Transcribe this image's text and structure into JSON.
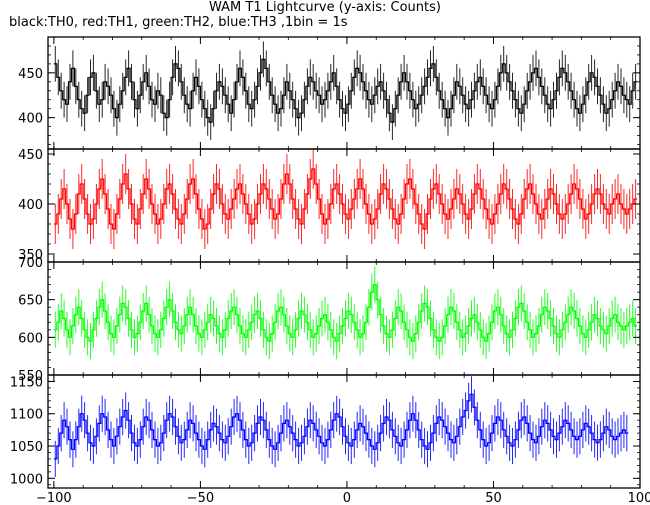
{
  "title": "WAM T1 Lightcurve (y-axis: Counts)",
  "subtitle": "black:TH0, red:TH1, green:TH2, blue:TH3 ,1bin = 1s",
  "chart_data": {
    "type": "line",
    "step": true,
    "x_range": [
      -102,
      100
    ],
    "x_ticks": [
      -100,
      -50,
      0,
      50,
      100
    ],
    "x_tick_labels": [
      "−100",
      "−50",
      "0",
      "50",
      "100"
    ],
    "bin_width": 1,
    "x_start": -100,
    "x_end": 98,
    "panels": [
      {
        "name": "TH0",
        "color": "#000000",
        "ylim": [
          365,
          490
        ],
        "y_ticks": [
          400,
          450
        ],
        "y_tick_labels": [
          "400",
          "450"
        ],
        "mean": 425,
        "amplitude": 15,
        "error": 20,
        "values": [
          460,
          445,
          430,
          420,
          415,
          440,
          455,
          435,
          420,
          410,
          405,
          425,
          445,
          450,
          430,
          415,
          420,
          440,
          435,
          425,
          410,
          400,
          415,
          430,
          445,
          455,
          440,
          420,
          410,
          425,
          440,
          450,
          435,
          420,
          415,
          430,
          425,
          405,
          400,
          420,
          445,
          460,
          455,
          440,
          425,
          415,
          410,
          430,
          445,
          435,
          420,
          410,
          400,
          395,
          410,
          430,
          440,
          435,
          425,
          415,
          405,
          420,
          440,
          455,
          445,
          430,
          415,
          410,
          420,
          435,
          450,
          465,
          455,
          440,
          425,
          415,
          405,
          410,
          425,
          440,
          430,
          420,
          410,
          400,
          405,
          420,
          435,
          445,
          440,
          430,
          425,
          415,
          420,
          430,
          440,
          450,
          435,
          420,
          410,
          405,
          415,
          430,
          445,
          455,
          450,
          440,
          430,
          420,
          415,
          425,
          435,
          440,
          430,
          420,
          405,
          395,
          410,
          425,
          440,
          450,
          440,
          430,
          420,
          410,
          415,
          425,
          435,
          445,
          455,
          460,
          445,
          430,
          420,
          410,
          400,
          410,
          425,
          440,
          435,
          425,
          415,
          410,
          420,
          430,
          440,
          445,
          435,
          425,
          415,
          410,
          420,
          435,
          450,
          460,
          450,
          440,
          430,
          420,
          410,
          405,
          415,
          430,
          440,
          450,
          455,
          445,
          435,
          425,
          415,
          410,
          420,
          430,
          445,
          455,
          450,
          440,
          430,
          420,
          410,
          405,
          415,
          425,
          440,
          450,
          445,
          435,
          425,
          415,
          405,
          410,
          420,
          430,
          440,
          435,
          425,
          420,
          415,
          430,
          440
        ]
      },
      {
        "name": "TH1",
        "color": "#ff0000",
        "ylim": [
          342,
          455
        ],
        "y_ticks": [
          350,
          400,
          450
        ],
        "y_tick_labels": [
          "350",
          "400",
          "450"
        ],
        "mean": 395,
        "amplitude": 15,
        "error": 20,
        "values": [
          380,
          390,
          405,
          415,
          400,
          385,
          375,
          390,
          410,
          420,
          405,
          390,
          380,
          385,
          400,
          415,
          425,
          410,
          395,
          380,
          375,
          390,
          405,
          420,
          430,
          415,
          400,
          385,
          380,
          395,
          410,
          425,
          415,
          400,
          390,
          380,
          385,
          400,
          415,
          420,
          410,
          395,
          385,
          380,
          390,
          405,
          420,
          425,
          410,
          395,
          385,
          375,
          380,
          395,
          410,
          420,
          415,
          400,
          390,
          385,
          395,
          405,
          415,
          420,
          410,
          400,
          390,
          380,
          385,
          400,
          410,
          420,
          415,
          405,
          395,
          385,
          390,
          405,
          420,
          430,
          420,
          405,
          395,
          385,
          380,
          395,
          410,
          425,
          435,
          420,
          405,
          390,
          380,
          385,
          400,
          415,
          420,
          410,
          400,
          390,
          385,
          395,
          405,
          415,
          425,
          415,
          400,
          390,
          380,
          385,
          395,
          410,
          420,
          415,
          405,
          395,
          385,
          380,
          390,
          405,
          420,
          425,
          415,
          400,
          390,
          380,
          375,
          390,
          405,
          415,
          420,
          410,
          400,
          390,
          385,
          395,
          405,
          415,
          410,
          400,
          390,
          385,
          395,
          410,
          420,
          415,
          405,
          395,
          385,
          380,
          390,
          400,
          410,
          420,
          415,
          405,
          395,
          385,
          380,
          390,
          405,
          415,
          420,
          410,
          400,
          390,
          385,
          395,
          405,
          415,
          410,
          400,
          390,
          385,
          390,
          400,
          410,
          420,
          415,
          405,
          395,
          385,
          390,
          400,
          410,
          415,
          410,
          400,
          395,
          390,
          400,
          405,
          410,
          400,
          395,
          390,
          395,
          400,
          405
        ]
      },
      {
        "name": "TH2",
        "color": "#00ff00",
        "ylim": [
          550,
          700
        ],
        "y_ticks": [
          550,
          600,
          650,
          700
        ],
        "y_tick_labels": [
          "550",
          "600",
          "650",
          "700"
        ],
        "mean": 617,
        "amplitude": 20,
        "error": 24,
        "values": [
          610,
          620,
          635,
          625,
          610,
          600,
          615,
          630,
          640,
          625,
          610,
          600,
          595,
          610,
          625,
          640,
          650,
          635,
          620,
          605,
          600,
          615,
          630,
          645,
          640,
          625,
          610,
          600,
          605,
          620,
          635,
          645,
          630,
          615,
          605,
          600,
          610,
          625,
          640,
          650,
          635,
          620,
          610,
          605,
          615,
          630,
          640,
          630,
          615,
          605,
          600,
          610,
          620,
          630,
          625,
          615,
          605,
          600,
          610,
          625,
          635,
          640,
          630,
          615,
          605,
          600,
          610,
          620,
          630,
          635,
          625,
          610,
          600,
          595,
          605,
          620,
          635,
          640,
          630,
          615,
          605,
          600,
          610,
          625,
          635,
          630,
          620,
          610,
          600,
          605,
          615,
          625,
          630,
          620,
          610,
          600,
          595,
          605,
          615,
          625,
          635,
          630,
          620,
          610,
          600,
          605,
          620,
          640,
          660,
          670,
          650,
          630,
          615,
          605,
          600,
          610,
          625,
          640,
          635,
          620,
          610,
          600,
          595,
          605,
          620,
          635,
          645,
          640,
          625,
          610,
          600,
          595,
          600,
          615,
          630,
          640,
          635,
          620,
          610,
          600,
          605,
          615,
          625,
          630,
          620,
          610,
          600,
          595,
          605,
          620,
          635,
          640,
          630,
          615,
          605,
          600,
          610,
          625,
          640,
          645,
          635,
          620,
          610,
          600,
          605,
          615,
          630,
          640,
          635,
          625,
          615,
          605,
          600,
          610,
          620,
          630,
          640,
          635,
          625,
          615,
          605,
          600,
          610,
          620,
          630,
          625,
          615,
          610,
          605,
          615,
          625,
          630,
          620,
          615,
          610,
          615,
          620,
          625,
          615
        ]
      },
      {
        "name": "TH3",
        "color": "#0000ff",
        "ylim": [
          985,
          1160
        ],
        "y_ticks": [
          1000,
          1050,
          1100,
          1150
        ],
        "y_tick_labels": [
          "1000",
          "1050",
          "1100",
          "1150"
        ],
        "mean": 1075,
        "amplitude": 25,
        "error": 28,
        "values": [
          1030,
          1050,
          1070,
          1090,
          1080,
          1060,
          1045,
          1060,
          1080,
          1100,
          1090,
          1070,
          1055,
          1050,
          1065,
          1085,
          1100,
          1095,
          1075,
          1060,
          1050,
          1065,
          1080,
          1095,
          1105,
          1090,
          1070,
          1055,
          1050,
          1060,
          1080,
          1095,
          1090,
          1075,
          1060,
          1050,
          1055,
          1070,
          1090,
          1100,
          1095,
          1080,
          1065,
          1055,
          1060,
          1075,
          1090,
          1085,
          1070,
          1060,
          1050,
          1045,
          1060,
          1075,
          1085,
          1080,
          1070,
          1060,
          1055,
          1065,
          1080,
          1095,
          1100,
          1090,
          1075,
          1060,
          1050,
          1055,
          1070,
          1085,
          1095,
          1090,
          1075,
          1060,
          1050,
          1045,
          1055,
          1070,
          1085,
          1090,
          1080,
          1070,
          1060,
          1050,
          1055,
          1065,
          1080,
          1090,
          1085,
          1075,
          1065,
          1055,
          1050,
          1060,
          1075,
          1090,
          1100,
          1095,
          1080,
          1065,
          1055,
          1050,
          1060,
          1075,
          1085,
          1080,
          1070,
          1060,
          1050,
          1045,
          1055,
          1070,
          1085,
          1095,
          1090,
          1075,
          1065,
          1055,
          1050,
          1060,
          1075,
          1090,
          1100,
          1090,
          1075,
          1060,
          1050,
          1045,
          1055,
          1070,
          1085,
          1095,
          1090,
          1080,
          1070,
          1060,
          1055,
          1065,
          1080,
          1095,
          1105,
          1120,
          1130,
          1110,
          1090,
          1075,
          1060,
          1050,
          1055,
          1070,
          1085,
          1095,
          1090,
          1075,
          1065,
          1055,
          1050,
          1060,
          1075,
          1090,
          1095,
          1085,
          1070,
          1060,
          1055,
          1065,
          1080,
          1090,
          1085,
          1075,
          1065,
          1060,
          1070,
          1080,
          1090,
          1085,
          1075,
          1065,
          1060,
          1065,
          1075,
          1085,
          1080,
          1070,
          1060,
          1055,
          1060,
          1070,
          1080,
          1075,
          1065,
          1060,
          1065,
          1070,
          1075,
          1070
        ]
      }
    ]
  }
}
